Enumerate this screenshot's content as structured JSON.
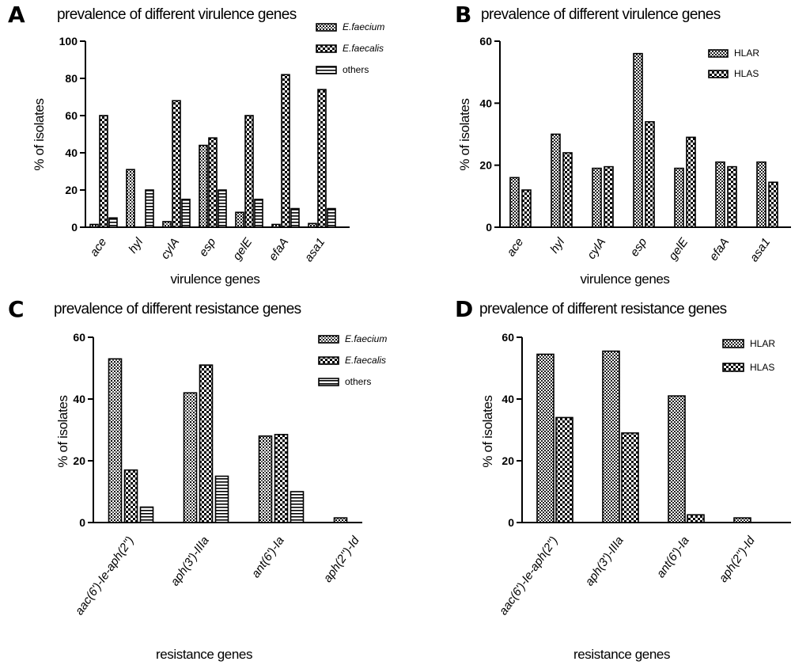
{
  "chart_data": [
    {
      "type": "bar",
      "panel": "A",
      "title": "prevalence of different virulence genes",
      "xlabel": "virulence genes",
      "ylabel": "% of isolates",
      "ylim": [
        0,
        100
      ],
      "yticks": [
        0,
        20,
        40,
        60,
        80,
        100
      ],
      "legend_position": "top-right",
      "categories": [
        "ace",
        "hyl",
        "cylA",
        "esp",
        "gelE",
        "efaA",
        "asa1"
      ],
      "series": [
        {
          "name": "E.faecium",
          "pattern": "dots",
          "values": [
            1.5,
            31,
            3,
            44,
            8,
            1.5,
            2
          ]
        },
        {
          "name": "E.faecalis",
          "pattern": "check",
          "values": [
            60,
            0,
            68,
            48,
            60,
            82,
            74
          ]
        },
        {
          "name": "others",
          "pattern": "hlines",
          "values": [
            5,
            20,
            15,
            20,
            15,
            10,
            10
          ]
        }
      ]
    },
    {
      "type": "bar",
      "panel": "B",
      "title": "prevalence of different virulence genes",
      "xlabel": "virulence genes",
      "ylabel": "% of isolates",
      "ylim": [
        0,
        60
      ],
      "yticks": [
        0,
        20,
        40,
        60
      ],
      "legend_position": "top-right",
      "categories": [
        "ace",
        "hyl",
        "cylA",
        "esp",
        "gelE",
        "efaA",
        "asa1"
      ],
      "series": [
        {
          "name": "HLAR",
          "pattern": "check-fine",
          "values": [
            16,
            30,
            19,
            56,
            19,
            21,
            21
          ]
        },
        {
          "name": "HLAS",
          "pattern": "check",
          "values": [
            12,
            24,
            19.5,
            34,
            29,
            19.5,
            14.5
          ]
        }
      ]
    },
    {
      "type": "bar",
      "panel": "C",
      "title": "prevalence of different resistance genes",
      "xlabel": "resistance genes",
      "ylabel": "% of isolates",
      "ylim": [
        0,
        60
      ],
      "yticks": [
        0,
        20,
        40,
        60
      ],
      "legend_position": "top-right",
      "categories": [
        "aac(6')-Ie-aph(2'')",
        "aph(3')-IIIa",
        "ant(6')-Ia",
        "aph(2'')-Id"
      ],
      "series": [
        {
          "name": "E.faecium",
          "pattern": "dots",
          "values": [
            53,
            42,
            28,
            1.5
          ]
        },
        {
          "name": "E.faecalis",
          "pattern": "check",
          "values": [
            17,
            51,
            28.5,
            0
          ]
        },
        {
          "name": "others",
          "pattern": "hlines",
          "values": [
            5,
            15,
            10,
            0
          ]
        }
      ]
    },
    {
      "type": "bar",
      "panel": "D",
      "title": "prevalence of different resistance genes",
      "xlabel": "resistance genes",
      "ylabel": "% of isolates",
      "ylim": [
        0,
        60
      ],
      "yticks": [
        0,
        20,
        40,
        60
      ],
      "legend_position": "top-right",
      "categories": [
        "aac(6')-Ie-aph(2'')",
        "aph(3')-IIIa",
        "ant(6')-Ia",
        "aph(2'')-Id"
      ],
      "series": [
        {
          "name": "HLAR",
          "pattern": "check-fine",
          "values": [
            54.5,
            55.5,
            41,
            1.5
          ]
        },
        {
          "name": "HLAS",
          "pattern": "check",
          "values": [
            34,
            29,
            2.5,
            0
          ]
        }
      ]
    }
  ]
}
